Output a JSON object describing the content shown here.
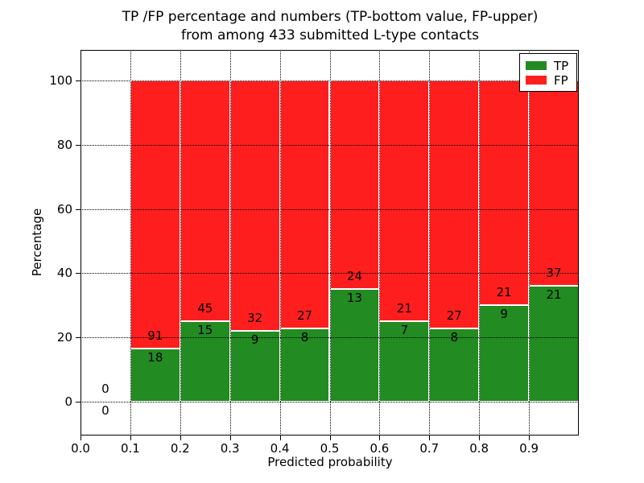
{
  "figure": {
    "title_line1": "TP /FP percentage and numbers (TP-bottom value, FP-upper)",
    "title_line2": "from among 433 submitted L-type contacts",
    "xlabel": "Predicted probability",
    "ylabel": "Percentage"
  },
  "legend": {
    "items": [
      {
        "label": "TP",
        "color": "#228B22"
      },
      {
        "label": "FP",
        "color": "#FF1E1E"
      }
    ]
  },
  "chart_data": {
    "type": "bar",
    "stacked": true,
    "orientation": "vertical",
    "title": "TP /FP percentage and numbers (TP-bottom value, FP-upper) from among 433 submitted L-type contacts",
    "xlabel": "Predicted probability",
    "ylabel": "Percentage",
    "xlim": [
      0.0,
      1.0
    ],
    "ylim": [
      -10.5,
      109.5
    ],
    "xticks": [
      "0.0",
      "0.1",
      "0.2",
      "0.3",
      "0.4",
      "0.5",
      "0.6",
      "0.7",
      "0.8",
      "0.9"
    ],
    "yticks": [
      0,
      20,
      40,
      60,
      80,
      100
    ],
    "grid": "dotted",
    "legend_position": "upper right",
    "total_contacts": 433,
    "bins": [
      {
        "range": [
          0.0,
          0.1
        ],
        "tp": 0,
        "fp": 0,
        "tp_pct": 0,
        "fp_pct": 0
      },
      {
        "range": [
          0.1,
          0.2
        ],
        "tp": 18,
        "fp": 91,
        "tp_pct": 16.51,
        "fp_pct": 83.49
      },
      {
        "range": [
          0.2,
          0.3
        ],
        "tp": 15,
        "fp": 45,
        "tp_pct": 25.0,
        "fp_pct": 75.0
      },
      {
        "range": [
          0.3,
          0.4
        ],
        "tp": 9,
        "fp": 32,
        "tp_pct": 21.95,
        "fp_pct": 78.05
      },
      {
        "range": [
          0.4,
          0.5
        ],
        "tp": 8,
        "fp": 27,
        "tp_pct": 22.86,
        "fp_pct": 77.14
      },
      {
        "range": [
          0.5,
          0.6
        ],
        "tp": 13,
        "fp": 24,
        "tp_pct": 35.14,
        "fp_pct": 64.86
      },
      {
        "range": [
          0.6,
          0.7
        ],
        "tp": 7,
        "fp": 21,
        "tp_pct": 25.0,
        "fp_pct": 75.0
      },
      {
        "range": [
          0.7,
          0.8
        ],
        "tp": 8,
        "fp": 27,
        "tp_pct": 22.86,
        "fp_pct": 77.14
      },
      {
        "range": [
          0.8,
          0.9
        ],
        "tp": 9,
        "fp": 21,
        "tp_pct": 30.0,
        "fp_pct": 70.0
      },
      {
        "range": [
          0.9,
          1.0
        ],
        "tp": 21,
        "fp": 37,
        "tp_pct": 36.21,
        "fp_pct": 63.79
      }
    ],
    "colors": {
      "tp": "#228B22",
      "fp": "#FF1E1E"
    }
  }
}
